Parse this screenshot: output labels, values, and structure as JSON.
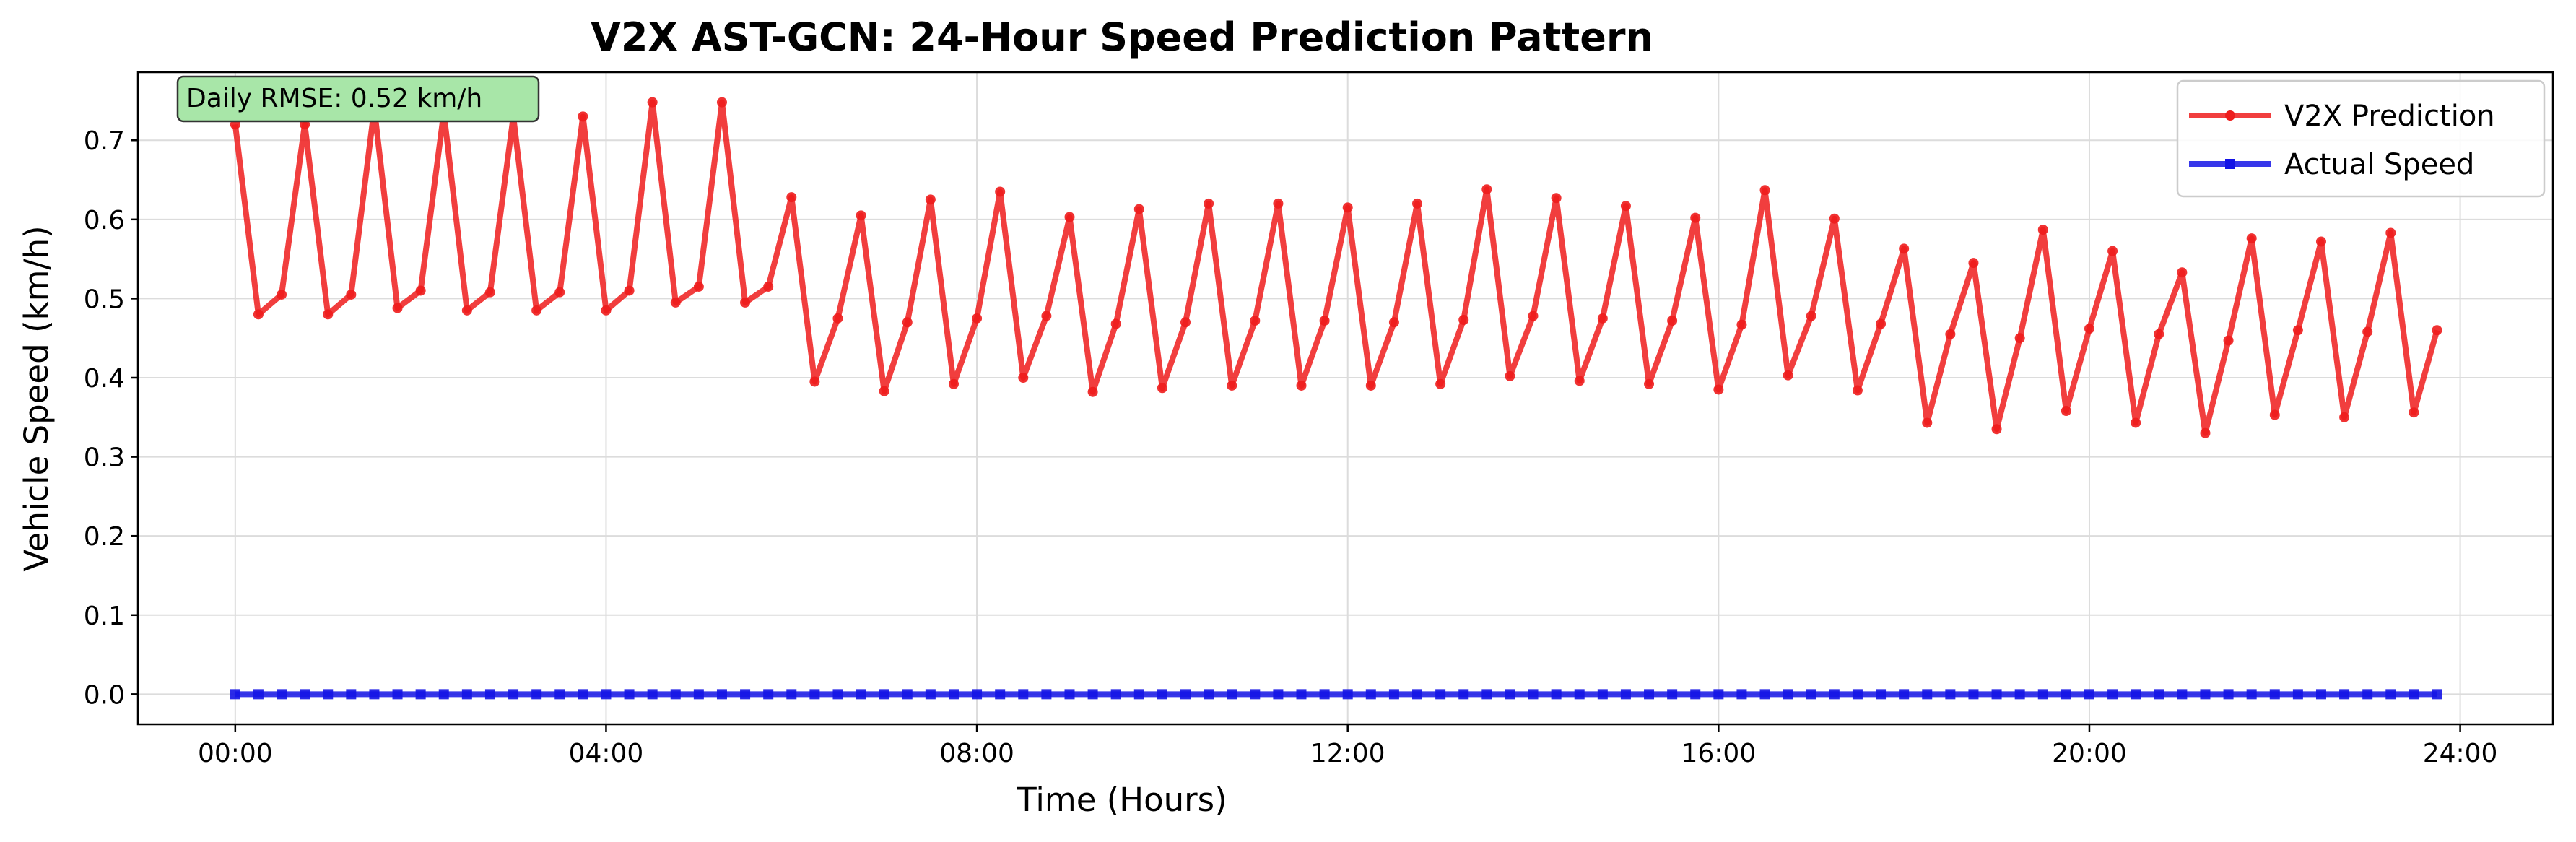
{
  "chart_data": {
    "type": "line",
    "title": "V2X AST-GCN: 24-Hour Speed Prediction Pattern",
    "xlabel": "Time (Hours)",
    "ylabel": "Vehicle Speed (km/h)",
    "xlim": [
      -1.05,
      25.0
    ],
    "ylim": [
      -0.038,
      0.786
    ],
    "x_ticks": [
      0,
      4,
      8,
      12,
      16,
      20,
      24
    ],
    "x_tick_labels": [
      "00:00",
      "04:00",
      "08:00",
      "12:00",
      "16:00",
      "20:00",
      "24:00"
    ],
    "y_ticks": [
      0.0,
      0.1,
      0.2,
      0.3,
      0.4,
      0.5,
      0.6,
      0.7
    ],
    "y_tick_labels": [
      "0.0",
      "0.1",
      "0.2",
      "0.3",
      "0.4",
      "0.5",
      "0.6",
      "0.7"
    ],
    "grid": true,
    "legend_position": "top-right",
    "annotation": "Daily RMSE: 0.52 km/h",
    "annotation_color": "#a8e6a8",
    "x": [
      0.0,
      0.25,
      0.5,
      0.75,
      1.0,
      1.25,
      1.5,
      1.75,
      2.0,
      2.25,
      2.5,
      2.75,
      3.0,
      3.25,
      3.5,
      3.75,
      4.0,
      4.25,
      4.5,
      4.75,
      5.0,
      5.25,
      5.5,
      5.75,
      6.0,
      6.25,
      6.5,
      6.75,
      7.0,
      7.25,
      7.5,
      7.75,
      8.0,
      8.25,
      8.5,
      8.75,
      9.0,
      9.25,
      9.5,
      9.75,
      10.0,
      10.25,
      10.5,
      10.75,
      11.0,
      11.25,
      11.5,
      11.75,
      12.0,
      12.25,
      12.5,
      12.75,
      13.0,
      13.25,
      13.5,
      13.75,
      14.0,
      14.25,
      14.5,
      14.75,
      15.0,
      15.25,
      15.5,
      15.75,
      16.0,
      16.25,
      16.5,
      16.75,
      17.0,
      17.25,
      17.5,
      17.75,
      18.0,
      18.25,
      18.5,
      18.75,
      19.0,
      19.25,
      19.5,
      19.75,
      20.0,
      20.25,
      20.5,
      20.75,
      21.0,
      21.25,
      21.5,
      21.75,
      22.0,
      22.25,
      22.5,
      22.75,
      23.0,
      23.25,
      23.5,
      23.75
    ],
    "series": [
      {
        "name": "V2X Prediction",
        "color": "#ee1c1c",
        "marker": "circle",
        "values": [
          0.72,
          0.48,
          0.505,
          0.72,
          0.48,
          0.505,
          0.74,
          0.488,
          0.51,
          0.735,
          0.485,
          0.508,
          0.73,
          0.485,
          0.508,
          0.73,
          0.485,
          0.51,
          0.748,
          0.495,
          0.515,
          0.748,
          0.495,
          0.515,
          0.628,
          0.395,
          0.475,
          0.605,
          0.383,
          0.47,
          0.625,
          0.392,
          0.475,
          0.635,
          0.4,
          0.478,
          0.603,
          0.382,
          0.468,
          0.613,
          0.387,
          0.47,
          0.62,
          0.39,
          0.472,
          0.62,
          0.39,
          0.472,
          0.615,
          0.39,
          0.47,
          0.62,
          0.392,
          0.473,
          0.638,
          0.402,
          0.478,
          0.627,
          0.396,
          0.475,
          0.617,
          0.392,
          0.472,
          0.602,
          0.385,
          0.467,
          0.637,
          0.403,
          0.478,
          0.601,
          0.384,
          0.468,
          0.563,
          0.343,
          0.455,
          0.545,
          0.335,
          0.45,
          0.587,
          0.358,
          0.462,
          0.56,
          0.343,
          0.455,
          0.533,
          0.33,
          0.447,
          0.576,
          0.353,
          0.46,
          0.572,
          0.35,
          0.458,
          0.583,
          0.356,
          0.46
        ]
      },
      {
        "name": "Actual Speed",
        "color": "#1414e6",
        "marker": "square",
        "values": [
          0.0,
          0.0,
          0.0,
          0.0,
          0.0,
          0.0,
          0.0,
          0.0,
          0.0,
          0.0,
          0.0,
          0.0,
          0.0,
          0.0,
          0.0,
          0.0,
          0.0,
          0.0,
          0.0,
          0.0,
          0.0,
          0.0,
          0.0,
          0.0,
          0.0,
          0.0,
          0.0,
          0.0,
          0.0,
          0.0,
          0.0,
          0.0,
          0.0,
          0.0,
          0.0,
          0.0,
          0.0,
          0.0,
          0.0,
          0.0,
          0.0,
          0.0,
          0.0,
          0.0,
          0.0,
          0.0,
          0.0,
          0.0,
          0.0,
          0.0,
          0.0,
          0.0,
          0.0,
          0.0,
          0.0,
          0.0,
          0.0,
          0.0,
          0.0,
          0.0,
          0.0,
          0.0,
          0.0,
          0.0,
          0.0,
          0.0,
          0.0,
          0.0,
          0.0,
          0.0,
          0.0,
          0.0,
          0.0,
          0.0,
          0.0,
          0.0,
          0.0,
          0.0,
          0.0,
          0.0,
          0.0,
          0.0,
          0.0,
          0.0,
          0.0,
          0.0,
          0.0,
          0.0,
          0.0,
          0.0,
          0.0,
          0.0,
          0.0,
          0.0,
          0.0,
          0.0
        ]
      }
    ]
  }
}
